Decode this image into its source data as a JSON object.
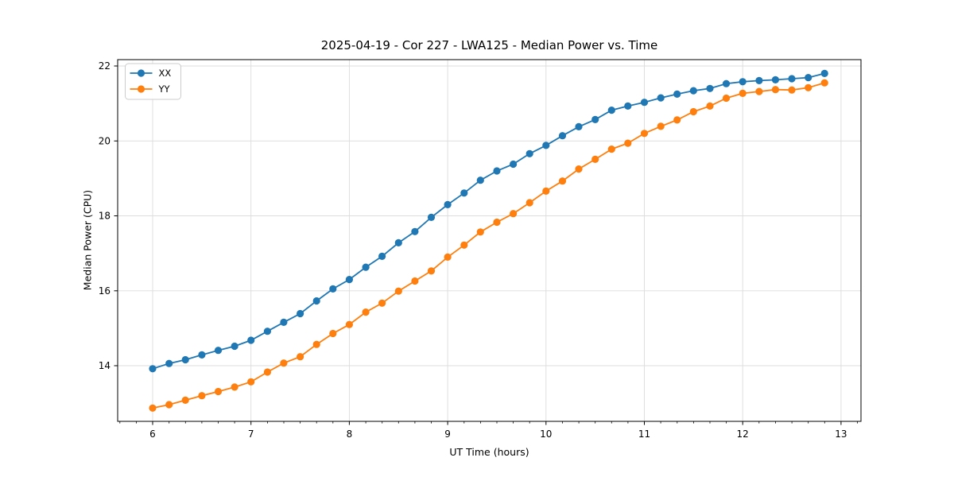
{
  "figure": {
    "title": "2025-04-19 - Cor 227 - LWA125 - Median Power vs. Time",
    "xlabel": "UT Time (hours)",
    "ylabel": "Median Power (CPU)"
  },
  "colors": {
    "series_xx": "#1f77b4",
    "series_yy": "#ff7f0e",
    "grid": "#dcdcdc",
    "spine": "#000000",
    "legend_border": "#cccccc",
    "background": "#ffffff"
  },
  "chart_data": {
    "type": "line",
    "title": "2025-04-19 - Cor 227 - LWA125 - Median Power vs. Time",
    "xlabel": "UT Time (hours)",
    "ylabel": "Median Power (CPU)",
    "xlim": [
      5.644,
      13.203
    ],
    "ylim": [
      12.515,
      22.17
    ],
    "x_ticks": [
      6,
      7,
      8,
      9,
      10,
      11,
      12,
      13
    ],
    "y_ticks": [
      14,
      16,
      18,
      20,
      22
    ],
    "x_minor_step": 0.16667,
    "grid": true,
    "legend_position": "upper-left",
    "legend_entries": [
      "XX",
      "YY"
    ],
    "x": [
      6.0,
      6.167,
      6.333,
      6.5,
      6.667,
      6.833,
      7.0,
      7.167,
      7.333,
      7.5,
      7.667,
      7.833,
      8.0,
      8.167,
      8.333,
      8.5,
      8.667,
      8.833,
      9.0,
      9.167,
      9.333,
      9.5,
      9.667,
      9.833,
      10.0,
      10.167,
      10.333,
      10.5,
      10.667,
      10.833,
      11.0,
      11.167,
      11.333,
      11.5,
      11.667,
      11.833,
      12.0,
      12.167,
      12.333,
      12.5,
      12.667,
      12.833
    ],
    "series": [
      {
        "name": "XX",
        "color": "#1f77b4",
        "values": [
          13.92,
          14.06,
          14.16,
          14.29,
          14.41,
          14.52,
          14.68,
          14.92,
          15.16,
          15.39,
          15.73,
          16.05,
          16.3,
          16.63,
          16.92,
          17.28,
          17.58,
          17.96,
          18.3,
          18.61,
          18.95,
          19.2,
          19.38,
          19.66,
          19.88,
          20.14,
          20.38,
          20.57,
          20.82,
          20.93,
          21.03,
          21.15,
          21.25,
          21.34,
          21.4,
          21.53,
          21.58,
          21.61,
          21.63,
          21.66,
          21.69,
          21.8
        ]
      },
      {
        "name": "YY",
        "color": "#ff7f0e",
        "values": [
          12.87,
          12.96,
          13.08,
          13.2,
          13.31,
          13.43,
          13.57,
          13.83,
          14.07,
          14.24,
          14.57,
          14.86,
          15.1,
          15.43,
          15.67,
          15.99,
          16.26,
          16.53,
          16.9,
          17.22,
          17.57,
          17.83,
          18.06,
          18.35,
          18.66,
          18.93,
          19.25,
          19.51,
          19.78,
          19.94,
          20.2,
          20.39,
          20.56,
          20.78,
          20.93,
          21.14,
          21.27,
          21.32,
          21.37,
          21.36,
          21.42,
          21.55
        ]
      }
    ]
  }
}
